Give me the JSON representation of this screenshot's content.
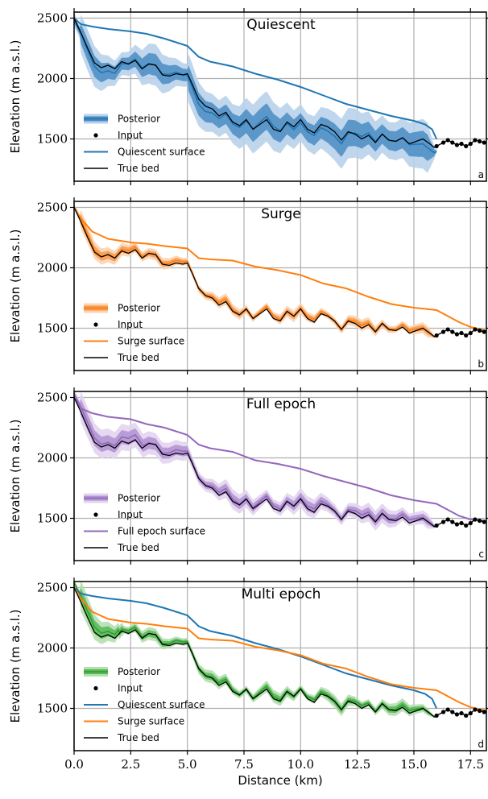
{
  "chart_data": [
    {
      "type": "line",
      "title": "Quiescent",
      "panel_letter": "a",
      "ylabel": "Elevation (m a.s.l.)",
      "xlabel": "",
      "xlim": [
        0,
        18.2
      ],
      "ylim": [
        1150,
        2550
      ],
      "xticks": [
        0,
        2.5,
        5,
        7.5,
        10,
        12.5,
        15,
        17.5
      ],
      "yticks": [
        1500,
        2000,
        2500
      ],
      "ytick_labels": [
        "1500",
        "2000",
        "2500"
      ],
      "grid": true,
      "legend": [
        "Posterior",
        "Input",
        "Quiescent surface",
        "True bed"
      ],
      "legend_loc": "lower left",
      "accent": "#1f77b4",
      "inner_band_color": "#4a8cc4",
      "outer_band_color": "#b8d2ea",
      "posterior_kind": "wide",
      "surfaces": [
        {
          "name": "Quiescent surface",
          "color": "#1f77b4",
          "x": [
            0,
            0.3,
            0.8,
            1.5,
            2.5,
            3.2,
            4.0,
            5.0,
            5.5,
            6.0,
            7.0,
            8.0,
            9.0,
            10.0,
            11.0,
            12.0,
            13.0,
            14.0,
            15.0,
            15.5,
            15.8,
            16.0
          ],
          "y": [
            2500,
            2450,
            2430,
            2410,
            2390,
            2370,
            2330,
            2270,
            2180,
            2140,
            2100,
            2040,
            1990,
            1930,
            1860,
            1790,
            1740,
            1690,
            1650,
            1620,
            1580,
            1500
          ]
        }
      ]
    },
    {
      "type": "line",
      "title": "Surge",
      "panel_letter": "b",
      "ylabel": "Elevation (m a.s.l.)",
      "xlabel": "",
      "xlim": [
        0,
        18.2
      ],
      "ylim": [
        1150,
        2550
      ],
      "xticks": [
        0,
        2.5,
        5,
        7.5,
        10,
        12.5,
        15,
        17.5
      ],
      "yticks": [
        1500,
        2000,
        2500
      ],
      "ytick_labels": [
        "1500",
        "2000",
        "2500"
      ],
      "grid": true,
      "legend": [
        "Posterior",
        "Input",
        "Surge surface",
        "True bed"
      ],
      "legend_loc": "lower left",
      "accent": "#ff7f0e",
      "inner_band_color": "#f79a4d",
      "outer_band_color": "#fcd3b0",
      "posterior_kind": "narrow",
      "surfaces": [
        {
          "name": "Surge surface",
          "color": "#ff7f0e",
          "x": [
            0,
            0.3,
            0.8,
            1.5,
            2.5,
            3.2,
            4.0,
            5.0,
            5.5,
            6.0,
            7.0,
            8.0,
            9.0,
            10.0,
            11.0,
            12.0,
            13.0,
            14.0,
            15.0,
            16.0,
            16.5,
            17.0,
            17.5,
            18.2
          ],
          "y": [
            2500,
            2410,
            2300,
            2240,
            2210,
            2200,
            2180,
            2160,
            2080,
            2070,
            2060,
            2010,
            1980,
            1940,
            1870,
            1830,
            1760,
            1700,
            1670,
            1650,
            1600,
            1550,
            1510,
            1480
          ]
        }
      ]
    },
    {
      "type": "line",
      "title": "Full epoch",
      "panel_letter": "c",
      "ylabel": "Elevation (m a.s.l.)",
      "xlabel": "",
      "xlim": [
        0,
        18.2
      ],
      "ylim": [
        1150,
        2550
      ],
      "xticks": [
        0,
        2.5,
        5,
        7.5,
        10,
        12.5,
        15,
        17.5
      ],
      "yticks": [
        1500,
        2000,
        2500
      ],
      "ytick_labels": [
        "1500",
        "2000",
        "2500"
      ],
      "grid": true,
      "legend": [
        "Posterior",
        "Input",
        "Full epoch surface",
        "True bed"
      ],
      "legend_loc": "lower left",
      "accent": "#9467bd",
      "inner_band_color": "#b092d1",
      "outer_band_color": "#e2d4ee",
      "posterior_kind": "medium",
      "surfaces": [
        {
          "name": "Full epoch surface",
          "color": "#9467bd",
          "x": [
            0,
            0.3,
            0.8,
            1.5,
            2.5,
            3.2,
            4.0,
            5.0,
            5.5,
            6.0,
            7.0,
            8.0,
            9.0,
            10.0,
            11.0,
            12.0,
            13.0,
            14.0,
            15.0,
            16.0,
            16.5,
            17.0,
            17.5,
            18.2
          ],
          "y": [
            2500,
            2410,
            2370,
            2340,
            2320,
            2280,
            2250,
            2190,
            2110,
            2080,
            2050,
            1980,
            1950,
            1910,
            1850,
            1800,
            1750,
            1690,
            1650,
            1620,
            1570,
            1520,
            1490,
            1480
          ]
        }
      ]
    },
    {
      "type": "line",
      "title": "Multi epoch",
      "panel_letter": "d",
      "ylabel": "Elevation (m a.s.l.)",
      "xlabel": "Distance (km)",
      "xlim": [
        0,
        18.2
      ],
      "ylim": [
        1150,
        2550
      ],
      "xticks": [
        0,
        2.5,
        5,
        7.5,
        10,
        12.5,
        15,
        17.5
      ],
      "xtick_labels": [
        "0.0",
        "2.5",
        "5.0",
        "7.5",
        "10.0",
        "12.5",
        "15.0",
        "17.5"
      ],
      "yticks": [
        1500,
        2000,
        2500
      ],
      "ytick_labels": [
        "1500",
        "2000",
        "2500"
      ],
      "grid": true,
      "legend": [
        "Posterior",
        "Input",
        "Quiescent surface",
        "Surge surface",
        "True bed"
      ],
      "legend_loc": "lower left",
      "accent": "#2ca02c",
      "inner_band_color": "#57b957",
      "outer_band_color": "#b6deb0",
      "posterior_kind": "multi",
      "surfaces": [
        {
          "name": "Quiescent surface",
          "color": "#1f77b4",
          "x": [
            0,
            0.3,
            0.8,
            1.5,
            2.5,
            3.2,
            4.0,
            5.0,
            5.5,
            6.0,
            7.0,
            8.0,
            9.0,
            10.0,
            11.0,
            12.0,
            13.0,
            14.0,
            15.0,
            15.5,
            15.8,
            16.0
          ],
          "y": [
            2500,
            2450,
            2430,
            2410,
            2390,
            2370,
            2330,
            2270,
            2180,
            2140,
            2100,
            2040,
            1990,
            1930,
            1860,
            1790,
            1740,
            1690,
            1650,
            1620,
            1580,
            1500
          ]
        },
        {
          "name": "Surge surface",
          "color": "#ff7f0e",
          "x": [
            0,
            0.3,
            0.8,
            1.5,
            2.5,
            3.2,
            4.0,
            5.0,
            5.5,
            6.0,
            7.0,
            8.0,
            9.0,
            10.0,
            11.0,
            12.0,
            13.0,
            14.0,
            15.0,
            16.0,
            16.5,
            17.0,
            17.5,
            18.2
          ],
          "y": [
            2500,
            2410,
            2300,
            2240,
            2210,
            2200,
            2180,
            2160,
            2080,
            2070,
            2060,
            2010,
            1980,
            1940,
            1870,
            1830,
            1760,
            1700,
            1670,
            1650,
            1600,
            1550,
            1510,
            1480
          ]
        }
      ]
    }
  ],
  "true_bed": {
    "name": "True bed",
    "color": "#000000",
    "x": [
      0,
      0.3,
      0.6,
      0.9,
      1.2,
      1.5,
      1.8,
      2.1,
      2.4,
      2.7,
      3.0,
      3.3,
      3.6,
      3.9,
      4.2,
      4.5,
      4.8,
      5.0,
      5.2,
      5.5,
      5.8,
      6.1,
      6.4,
      6.7,
      7.0,
      7.3,
      7.6,
      7.9,
      8.2,
      8.5,
      8.8,
      9.1,
      9.4,
      9.7,
      10.0,
      10.3,
      10.6,
      10.9,
      11.2,
      11.5,
      11.8,
      12.1,
      12.4,
      12.7,
      13.0,
      13.3,
      13.6,
      13.9,
      14.2,
      14.5,
      14.8,
      15.1,
      15.4,
      15.7,
      15.9,
      16.0
    ],
    "y": [
      2500,
      2380,
      2250,
      2130,
      2090,
      2110,
      2080,
      2140,
      2120,
      2150,
      2080,
      2120,
      2110,
      2030,
      2020,
      2040,
      2030,
      2040,
      1960,
      1830,
      1770,
      1750,
      1690,
      1720,
      1640,
      1610,
      1660,
      1580,
      1620,
      1660,
      1580,
      1560,
      1640,
      1600,
      1660,
      1580,
      1550,
      1620,
      1600,
      1560,
      1490,
      1560,
      1540,
      1500,
      1530,
      1470,
      1540,
      1490,
      1480,
      1510,
      1460,
      1480,
      1500,
      1460,
      1430,
      1440
    ]
  },
  "input_points": {
    "name": "Input",
    "color": "#000000",
    "x": [
      16.0,
      16.3,
      16.5,
      16.7,
      16.9,
      17.1,
      17.3,
      17.5,
      17.7,
      17.9,
      18.1
    ],
    "y": [
      1440,
      1470,
      1490,
      1470,
      1450,
      1460,
      1440,
      1460,
      1490,
      1480,
      1470
    ]
  }
}
